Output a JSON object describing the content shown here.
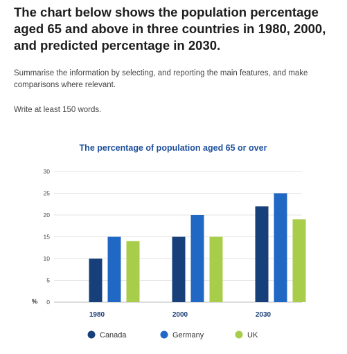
{
  "task": {
    "title": "The chart below shows the population percentage aged 65 and above in three countries in 1980, 2000, and predicted percentage in 2030.",
    "instructions": "Summarise the information by selecting, and reporting the main features, and make comparisons where relevant.",
    "word_count": "Write at least 150 words."
  },
  "chart_data": {
    "type": "bar",
    "title": "The percentage of population aged 65 or over",
    "ylabel": "%",
    "ylim": [
      0,
      30
    ],
    "yticks": [
      0,
      5,
      10,
      15,
      20,
      25,
      30
    ],
    "categories": [
      "1980",
      "2000",
      "2030"
    ],
    "series": [
      {
        "name": "Canada",
        "color": "#173f7a",
        "values": [
          10,
          15,
          22
        ]
      },
      {
        "name": "Germany",
        "color": "#2168c4",
        "values": [
          15,
          20,
          25
        ]
      },
      {
        "name": "UK",
        "color": "#a8cd4a",
        "values": [
          14,
          15,
          19
        ]
      }
    ],
    "legend_position": "bottom",
    "grid": true
  }
}
